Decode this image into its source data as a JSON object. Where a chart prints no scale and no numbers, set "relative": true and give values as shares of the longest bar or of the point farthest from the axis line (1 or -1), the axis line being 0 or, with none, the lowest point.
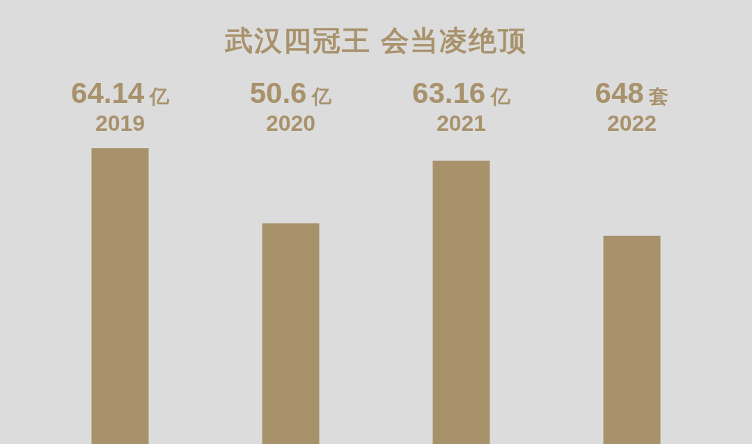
{
  "chart_data": {
    "type": "bar",
    "title": "武汉四冠王 会当凌绝顶",
    "relative": true,
    "categories": [
      "2019",
      "2020",
      "2021",
      "2022"
    ],
    "values": [
      1,
      0.746,
      0.958,
      0.704
    ],
    "annotations": [
      "64.14 亿",
      "50.6 亿",
      "63.16 亿",
      "648 套"
    ],
    "color": "#a8926c"
  }
}
